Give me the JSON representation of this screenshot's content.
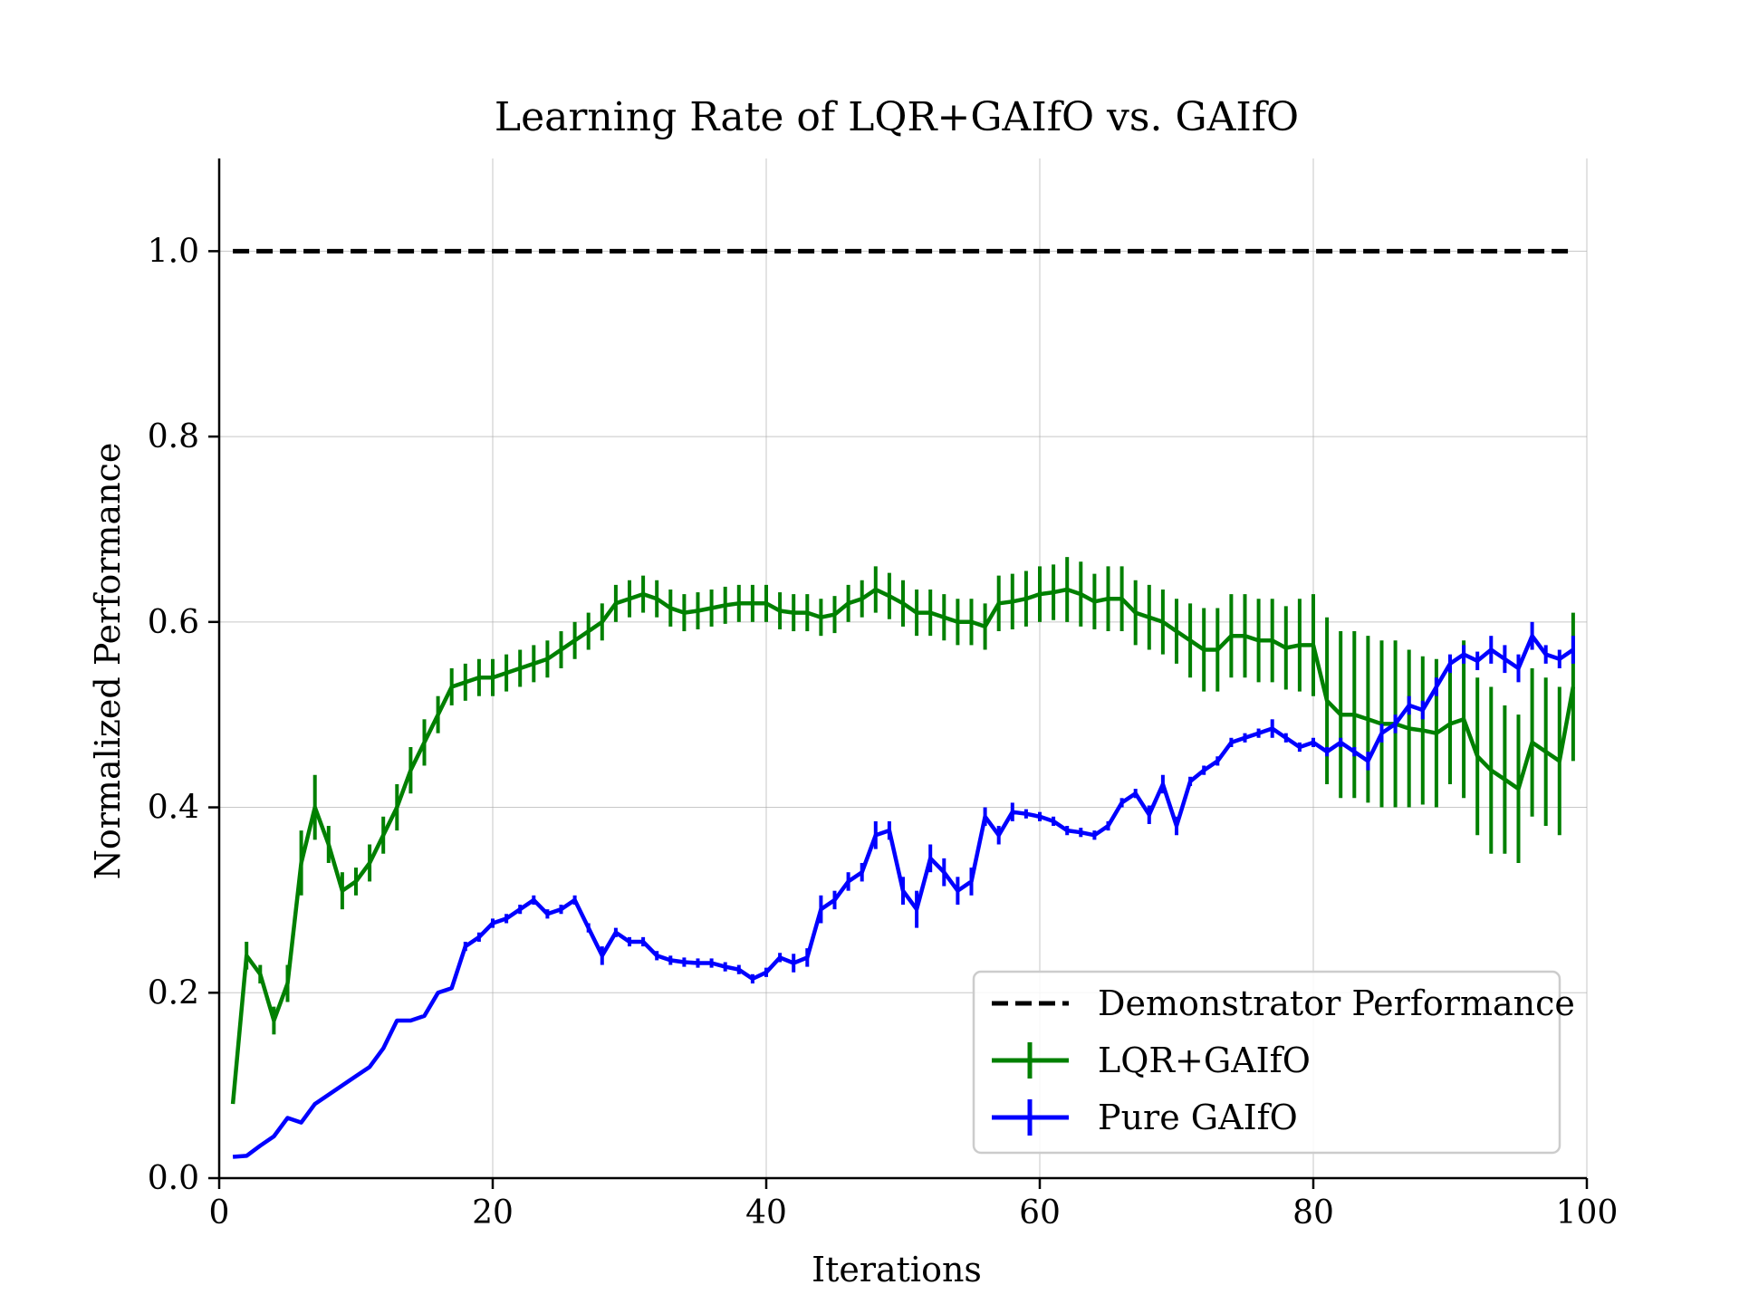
{
  "chart_data": {
    "type": "line",
    "title": "Learning Rate of LQR+GAIfO vs. GAIfO",
    "xlabel": "Iterations",
    "ylabel": "Normalized Performance",
    "xlim": [
      0,
      100
    ],
    "ylim": [
      0,
      1.1
    ],
    "xticks": [
      0,
      20,
      40,
      60,
      80,
      100
    ],
    "yticks": [
      0.0,
      0.2,
      0.4,
      0.6,
      0.8,
      1.0
    ],
    "xtick_labels": [
      "0",
      "20",
      "40",
      "60",
      "80",
      "100"
    ],
    "ytick_labels": [
      "0.0",
      "0.2",
      "0.4",
      "0.6",
      "0.8",
      "1.0"
    ],
    "grid": true,
    "legend_position": "bottom-right",
    "colors": {
      "demonstrator": "#000000",
      "lqr": "#008000",
      "pure": "#0000ff",
      "grid": "#b0b0b0"
    },
    "demonstrator": {
      "name": "Demonstrator Performance",
      "value": 1.0,
      "x_range": [
        1,
        99
      ],
      "style": "dashed"
    },
    "series": [
      {
        "name": "LQR+GAIfO",
        "x": [
          1,
          2,
          3,
          4,
          5,
          6,
          7,
          8,
          9,
          10,
          11,
          12,
          13,
          14,
          15,
          16,
          17,
          18,
          19,
          20,
          21,
          22,
          23,
          24,
          25,
          26,
          27,
          28,
          29,
          30,
          31,
          32,
          33,
          34,
          35,
          36,
          37,
          38,
          39,
          40,
          41,
          42,
          43,
          44,
          45,
          46,
          47,
          48,
          49,
          50,
          51,
          52,
          53,
          54,
          55,
          56,
          57,
          58,
          59,
          60,
          61,
          62,
          63,
          64,
          65,
          66,
          67,
          68,
          69,
          70,
          71,
          72,
          73,
          74,
          75,
          76,
          77,
          78,
          79,
          80,
          81,
          82,
          83,
          84,
          85,
          86,
          87,
          88,
          89,
          90,
          91,
          92,
          93,
          94,
          95,
          96,
          97,
          98,
          99
        ],
        "y": [
          0.08,
          0.24,
          0.22,
          0.17,
          0.21,
          0.34,
          0.4,
          0.36,
          0.31,
          0.32,
          0.34,
          0.37,
          0.4,
          0.44,
          0.47,
          0.5,
          0.53,
          0.535,
          0.54,
          0.54,
          0.545,
          0.55,
          0.555,
          0.56,
          0.57,
          0.58,
          0.59,
          0.6,
          0.62,
          0.625,
          0.63,
          0.625,
          0.615,
          0.61,
          0.612,
          0.615,
          0.618,
          0.62,
          0.62,
          0.62,
          0.612,
          0.61,
          0.61,
          0.605,
          0.608,
          0.62,
          0.625,
          0.635,
          0.628,
          0.62,
          0.61,
          0.61,
          0.605,
          0.6,
          0.6,
          0.595,
          0.62,
          0.622,
          0.625,
          0.63,
          0.632,
          0.635,
          0.63,
          0.622,
          0.625,
          0.625,
          0.61,
          0.605,
          0.6,
          0.59,
          0.58,
          0.57,
          0.57,
          0.585,
          0.585,
          0.58,
          0.58,
          0.572,
          0.575,
          0.575,
          0.515,
          0.5,
          0.5,
          0.495,
          0.49,
          0.49,
          0.485,
          0.483,
          0.48,
          0.49,
          0.495,
          0.455,
          0.44,
          0.43,
          0.42,
          0.47,
          0.46,
          0.45,
          0.53
        ],
        "err": [
          0.0,
          0.015,
          0.01,
          0.015,
          0.02,
          0.035,
          0.035,
          0.02,
          0.02,
          0.015,
          0.02,
          0.02,
          0.025,
          0.025,
          0.025,
          0.02,
          0.02,
          0.02,
          0.02,
          0.02,
          0.02,
          0.02,
          0.02,
          0.02,
          0.02,
          0.02,
          0.02,
          0.02,
          0.02,
          0.02,
          0.02,
          0.02,
          0.02,
          0.02,
          0.02,
          0.02,
          0.02,
          0.02,
          0.02,
          0.02,
          0.02,
          0.02,
          0.02,
          0.02,
          0.02,
          0.02,
          0.02,
          0.025,
          0.025,
          0.025,
          0.025,
          0.025,
          0.025,
          0.025,
          0.025,
          0.025,
          0.03,
          0.03,
          0.03,
          0.03,
          0.03,
          0.035,
          0.035,
          0.03,
          0.035,
          0.035,
          0.035,
          0.035,
          0.035,
          0.035,
          0.04,
          0.045,
          0.045,
          0.045,
          0.045,
          0.045,
          0.045,
          0.045,
          0.05,
          0.055,
          0.09,
          0.09,
          0.09,
          0.09,
          0.09,
          0.09,
          0.085,
          0.08,
          0.08,
          0.065,
          0.085,
          0.085,
          0.09,
          0.08,
          0.08,
          0.08,
          0.08,
          0.08,
          0.08
        ]
      },
      {
        "name": "Pure GAIfO",
        "x": [
          1,
          2,
          3,
          4,
          5,
          6,
          7,
          8,
          9,
          10,
          11,
          12,
          13,
          14,
          15,
          16,
          17,
          18,
          19,
          20,
          21,
          22,
          23,
          24,
          25,
          26,
          27,
          28,
          29,
          30,
          31,
          32,
          33,
          34,
          35,
          36,
          37,
          38,
          39,
          40,
          41,
          42,
          43,
          44,
          45,
          46,
          47,
          48,
          49,
          50,
          51,
          52,
          53,
          54,
          55,
          56,
          57,
          58,
          59,
          60,
          61,
          62,
          63,
          64,
          65,
          66,
          67,
          68,
          69,
          70,
          71,
          72,
          73,
          74,
          75,
          76,
          77,
          78,
          79,
          80,
          81,
          82,
          83,
          84,
          85,
          86,
          87,
          88,
          89,
          90,
          91,
          92,
          93,
          94,
          95,
          96,
          97,
          98,
          99
        ],
        "y": [
          0.023,
          0.024,
          0.035,
          0.045,
          0.065,
          0.06,
          0.08,
          0.09,
          0.1,
          0.11,
          0.12,
          0.14,
          0.17,
          0.17,
          0.175,
          0.2,
          0.205,
          0.25,
          0.26,
          0.275,
          0.28,
          0.29,
          0.3,
          0.285,
          0.29,
          0.3,
          0.27,
          0.24,
          0.265,
          0.255,
          0.255,
          0.24,
          0.235,
          0.233,
          0.232,
          0.232,
          0.228,
          0.225,
          0.215,
          0.222,
          0.238,
          0.232,
          0.238,
          0.29,
          0.3,
          0.32,
          0.33,
          0.37,
          0.375,
          0.31,
          0.29,
          0.345,
          0.33,
          0.31,
          0.32,
          0.39,
          0.37,
          0.395,
          0.393,
          0.39,
          0.385,
          0.375,
          0.373,
          0.37,
          0.38,
          0.405,
          0.415,
          0.392,
          0.425,
          0.38,
          0.428,
          0.44,
          0.45,
          0.47,
          0.475,
          0.48,
          0.485,
          0.475,
          0.465,
          0.47,
          0.46,
          0.47,
          0.46,
          0.45,
          0.48,
          0.49,
          0.51,
          0.505,
          0.53,
          0.555,
          0.565,
          0.558,
          0.57,
          0.56,
          0.55,
          0.585,
          0.565,
          0.56,
          0.57
        ],
        "err": [
          0.0,
          0.0,
          0.0,
          0.0,
          0.0,
          0.0,
          0.0,
          0.0,
          0.0,
          0.0,
          0.0,
          0.0,
          0.0,
          0.0,
          0.0,
          0.0,
          0.0,
          0.005,
          0.005,
          0.005,
          0.005,
          0.005,
          0.005,
          0.005,
          0.005,
          0.005,
          0.005,
          0.01,
          0.005,
          0.005,
          0.005,
          0.005,
          0.005,
          0.005,
          0.005,
          0.005,
          0.005,
          0.005,
          0.005,
          0.005,
          0.005,
          0.01,
          0.01,
          0.015,
          0.01,
          0.01,
          0.01,
          0.015,
          0.01,
          0.015,
          0.02,
          0.015,
          0.015,
          0.015,
          0.015,
          0.01,
          0.01,
          0.01,
          0.005,
          0.005,
          0.005,
          0.005,
          0.005,
          0.005,
          0.005,
          0.005,
          0.005,
          0.01,
          0.01,
          0.01,
          0.005,
          0.005,
          0.005,
          0.005,
          0.005,
          0.005,
          0.01,
          0.005,
          0.005,
          0.005,
          0.005,
          0.005,
          0.005,
          0.01,
          0.01,
          0.01,
          0.01,
          0.01,
          0.01,
          0.01,
          0.01,
          0.01,
          0.015,
          0.015,
          0.015,
          0.015,
          0.01,
          0.01,
          0.015
        ]
      }
    ]
  }
}
